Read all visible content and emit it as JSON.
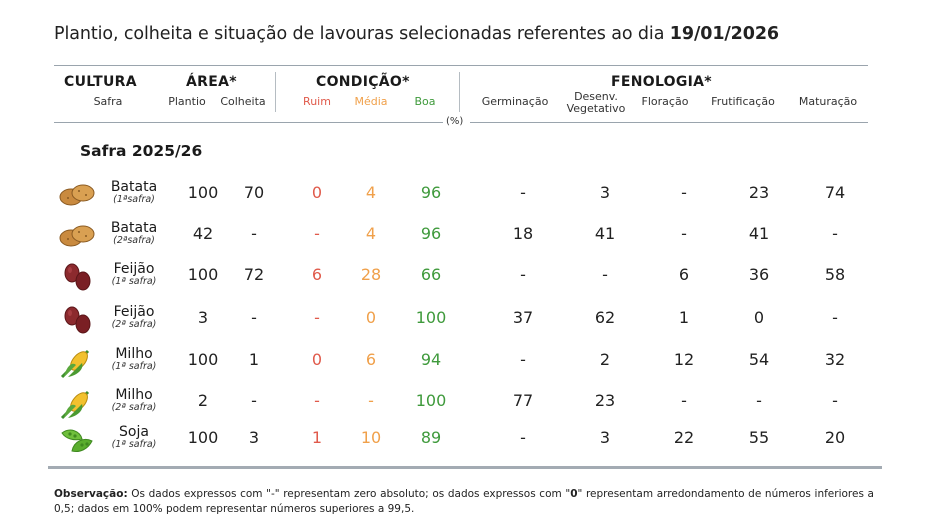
{
  "title": {
    "prefix": "Plantio, colheita e situação de lavouras selecionadas referentes ao dia ",
    "date": "19/01/2026"
  },
  "header": {
    "cultura": "CULTURA",
    "safra": "Safra",
    "area": "ÁREA*",
    "plantio": "Plantio",
    "colheita": "Colheita",
    "condicao": "CONDIÇÃO*",
    "ruim": "Ruim",
    "media": "Média",
    "boa": "Boa",
    "fenologia": "FENOLOGIA*",
    "germinacao": "Germinação",
    "desenv_1": "Desenv.",
    "desenv_2": "Vegetativo",
    "floracao": "Floração",
    "frutificacao": "Frutificação",
    "maturacao": "Maturação",
    "pct": "(%)"
  },
  "section": "Safra 2025/26",
  "colors": {
    "ruim": "#e05a4b",
    "media": "#f0a04a",
    "boa": "#3f9a3c"
  },
  "rows": [
    {
      "icon": "potato-icon",
      "name": "Batata",
      "safra": "(1ªsafra)",
      "plantio": "100",
      "colheita": "70",
      "ruim": "0",
      "media": "4",
      "boa": "96",
      "germinacao": "-",
      "desenv": "3",
      "floracao": "-",
      "frutificacao": "23",
      "maturacao": "74"
    },
    {
      "icon": "potato-icon",
      "name": "Batata",
      "safra": "(2ªsafra)",
      "plantio": "42",
      "colheita": "-",
      "ruim": "-",
      "media": "4",
      "boa": "96",
      "germinacao": "18",
      "desenv": "41",
      "floracao": "-",
      "frutificacao": "41",
      "maturacao": "-"
    },
    {
      "icon": "bean-icon",
      "name": "Feijão",
      "safra": "(1ª safra)",
      "plantio": "100",
      "colheita": "72",
      "ruim": "6",
      "media": "28",
      "boa": "66",
      "germinacao": "-",
      "desenv": "-",
      "floracao": "6",
      "frutificacao": "36",
      "maturacao": "58"
    },
    {
      "icon": "bean-icon",
      "name": "Feijão",
      "safra": "(2ª safra)",
      "plantio": "3",
      "colheita": "-",
      "ruim": "-",
      "media": "0",
      "boa": "100",
      "germinacao": "37",
      "desenv": "62",
      "floracao": "1",
      "frutificacao": "0",
      "maturacao": "-"
    },
    {
      "icon": "corn-icon",
      "name": "Milho",
      "safra": "(1ª safra)",
      "plantio": "100",
      "colheita": "1",
      "ruim": "0",
      "media": "6",
      "boa": "94",
      "germinacao": "-",
      "desenv": "2",
      "floracao": "12",
      "frutificacao": "54",
      "maturacao": "32"
    },
    {
      "icon": "corn-icon",
      "name": "Milho",
      "safra": "(2ª safra)",
      "plantio": "2",
      "colheita": "-",
      "ruim": "-",
      "media": "-",
      "boa": "100",
      "germinacao": "77",
      "desenv": "23",
      "floracao": "-",
      "frutificacao": "-",
      "maturacao": "-"
    },
    {
      "icon": "soy-icon",
      "name": "Soja",
      "safra": "(1ª safra)",
      "plantio": "100",
      "colheita": "3",
      "ruim": "1",
      "media": "10",
      "boa": "89",
      "germinacao": "-",
      "desenv": "3",
      "floracao": "22",
      "frutificacao": "55",
      "maturacao": "20"
    }
  ],
  "note": {
    "label": "Observação:",
    "text_1": " Os dados expressos com \"-\" representam zero absoluto; os dados expressos com \"",
    "zero": "0",
    "text_2": "\" representam arredondamento de números inferiores a 0,5; dados em 100% podem representar números superiores a 99,5."
  }
}
